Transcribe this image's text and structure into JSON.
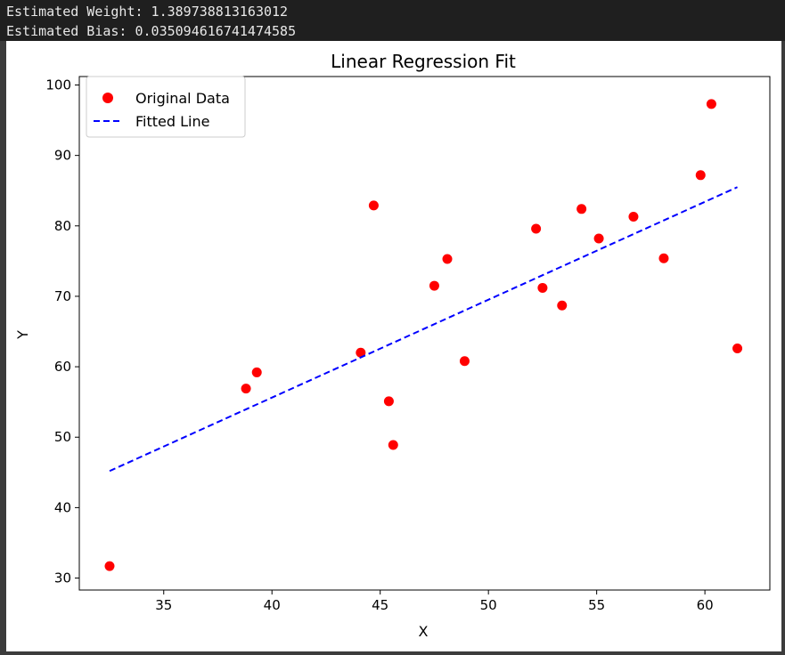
{
  "console": {
    "weight_line": "Estimated Weight: 1.389738813163012",
    "bias_line": "Estimated Bias: 0.035094616741474585"
  },
  "chart_data": {
    "type": "scatter",
    "title": "Linear Regression Fit",
    "xlabel": "X",
    "ylabel": "Y",
    "xlim": [
      31.1,
      63.0
    ],
    "ylim": [
      28.3,
      101.2
    ],
    "xticks": [
      35,
      40,
      45,
      50,
      55,
      60
    ],
    "yticks": [
      30,
      40,
      50,
      60,
      70,
      80,
      90,
      100
    ],
    "grid": false,
    "legend_position": "top-left",
    "series": [
      {
        "name": "Original Data",
        "kind": "scatter",
        "color": "#ff0000",
        "points": [
          [
            32.5,
            31.7
          ],
          [
            38.8,
            56.9
          ],
          [
            39.3,
            59.2
          ],
          [
            44.1,
            62.0
          ],
          [
            44.7,
            82.9
          ],
          [
            45.4,
            55.1
          ],
          [
            45.6,
            48.9
          ],
          [
            47.5,
            71.5
          ],
          [
            48.1,
            75.3
          ],
          [
            48.9,
            60.8
          ],
          [
            52.2,
            79.6
          ],
          [
            52.5,
            71.2
          ],
          [
            53.4,
            68.7
          ],
          [
            54.3,
            82.4
          ],
          [
            55.1,
            78.2
          ],
          [
            56.7,
            81.3
          ],
          [
            58.1,
            75.4
          ],
          [
            59.8,
            87.2
          ],
          [
            60.3,
            97.3
          ],
          [
            61.5,
            62.6
          ]
        ]
      },
      {
        "name": "Fitted Line",
        "kind": "line",
        "color": "#0000ff",
        "style": "dashed",
        "points": [
          [
            32.5,
            45.2
          ],
          [
            61.5,
            85.5
          ]
        ]
      }
    ]
  }
}
